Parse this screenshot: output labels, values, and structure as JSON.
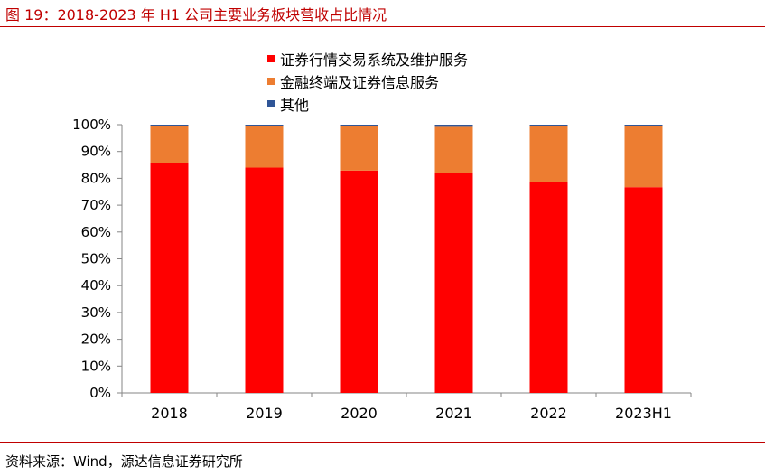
{
  "figure": {
    "title": "图 19：2018-2023 年 H1 公司主要业务板块营收占比情况",
    "source": "资料来源：Wind，源达信息证券研究所"
  },
  "colors": {
    "securities_trading": "#ff0000",
    "financial_terminal": "#ed7d31",
    "other": "#2f5597",
    "accent": "#c00000"
  },
  "chart_data": {
    "type": "bar",
    "stacked": true,
    "title": "",
    "xlabel": "",
    "ylabel": "",
    "categories": [
      "2018",
      "2019",
      "2020",
      "2021",
      "2022",
      "2023H1"
    ],
    "series": [
      {
        "name": "证券行情交易系统及维护服务",
        "values": [
          85.8,
          84.0,
          82.9,
          82.0,
          78.5,
          76.7
        ]
      },
      {
        "name": "金融终端及证券信息服务",
        "values": [
          13.7,
          15.5,
          16.6,
          17.2,
          21.0,
          22.8
        ]
      },
      {
        "name": "其他",
        "values": [
          0.5,
          0.5,
          0.5,
          0.8,
          0.5,
          0.5
        ]
      }
    ],
    "ylim": [
      0,
      100
    ],
    "yticks": [
      "0%",
      "10%",
      "20%",
      "30%",
      "40%",
      "50%",
      "60%",
      "70%",
      "80%",
      "90%",
      "100%"
    ],
    "legend_position": "top-center",
    "grid": false
  }
}
